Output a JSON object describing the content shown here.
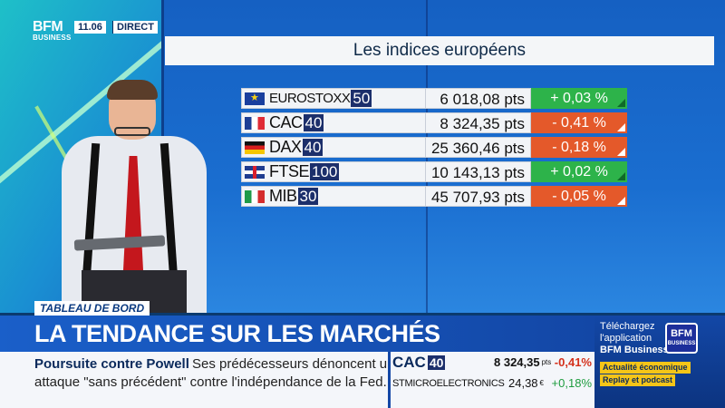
{
  "channel": {
    "logo_line1": "BFM",
    "logo_line2": "BUSINESS",
    "time": "11.06",
    "live_label": "DIRECT"
  },
  "indices_panel": {
    "title": "Les indices européens",
    "rows": [
      {
        "flag": "eu-flag-icon",
        "name": "EUROSTOXX",
        "num": "50",
        "value": "6 018,08 pts",
        "change": "+ 0,03 %",
        "direction": "up"
      },
      {
        "flag": "france-flag-icon",
        "name": "CAC",
        "num": "40",
        "value": "8 324,35 pts",
        "change": "- 0,41 %",
        "direction": "down"
      },
      {
        "flag": "germany-flag-icon",
        "name": "DAX",
        "num": "40",
        "value": "25 360,46 pts",
        "change": "- 0,18 %",
        "direction": "down"
      },
      {
        "flag": "uk-flag-icon",
        "name": "FTSE",
        "num": "100",
        "value": "10 143,13 pts",
        "change": "+ 0,02 %",
        "direction": "up"
      },
      {
        "flag": "italy-flag-icon",
        "name": "MIB",
        "num": "30",
        "value": "45 707,93 pts",
        "change": "- 0,05 %",
        "direction": "down"
      }
    ],
    "colors": {
      "up": "#2db34a",
      "down": "#e4592a"
    }
  },
  "lower_third": {
    "show_tag": "TABLEAU DE BORD",
    "headline": "LA TENDANCE SUR LES MARCHÉS",
    "news_title": "Poursuite contre Powell",
    "news_text_line1": "Ses prédécesseurs dénoncent une",
    "news_text_line2": "attaque \"sans précédent\" contre l'indépendance de la Fed."
  },
  "ticker": {
    "index_name": "CAC",
    "index_num": "40",
    "index_value": "8 324,35",
    "index_unit": "pts",
    "index_change": "-0,41%",
    "stock_name": "STMICROELECTRONICS",
    "stock_value": "24,38",
    "stock_unit": "€",
    "stock_change": "+0,18%"
  },
  "promo": {
    "line1": "Téléchargez",
    "line2": "l'application",
    "line3": "BFM Business",
    "logo_line1": "BFM",
    "logo_line2": "BUSINESS",
    "badge1": "Actualité économique",
    "badge2": "Replay et podcast"
  }
}
